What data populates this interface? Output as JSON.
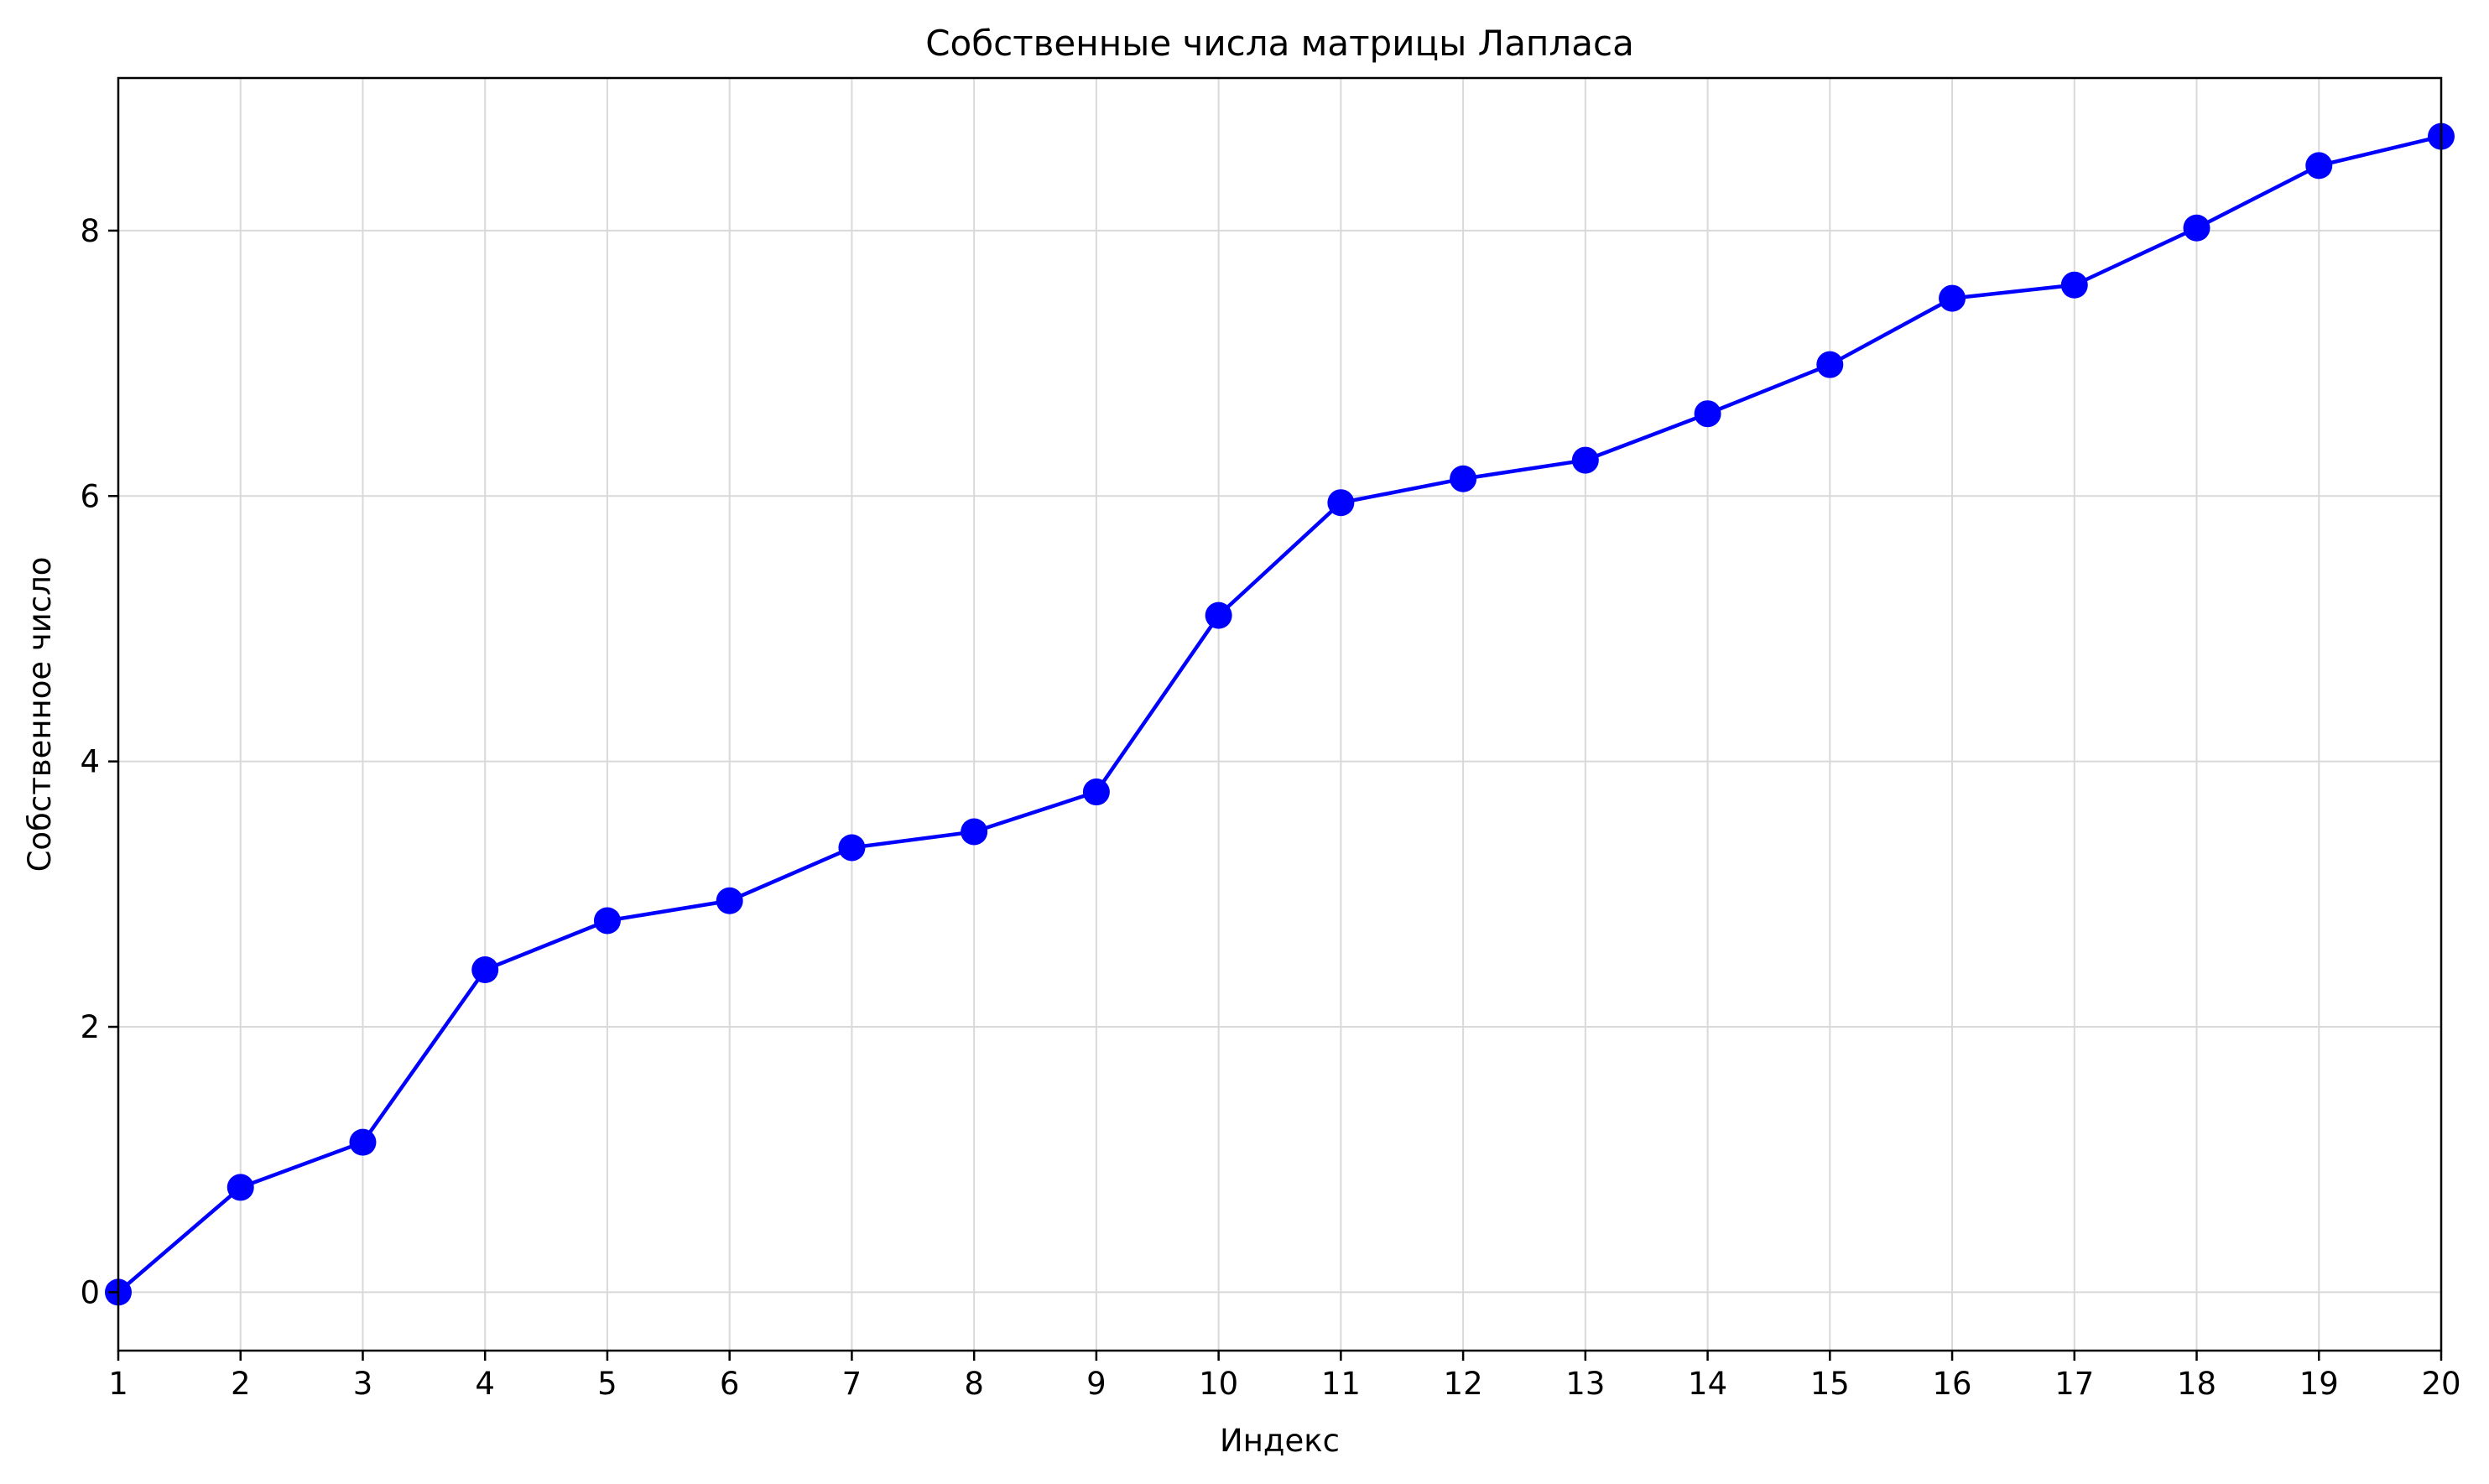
{
  "chart_data": {
    "type": "line",
    "title": "Собственные числа матрицы Лапласа",
    "xlabel": "Индекс",
    "ylabel": "Собственное число",
    "x": [
      1,
      2,
      3,
      4,
      5,
      6,
      7,
      8,
      9,
      10,
      11,
      12,
      13,
      14,
      15,
      16,
      17,
      18,
      19,
      20
    ],
    "series": [
      {
        "values": [
          0.0,
          0.79,
          1.13,
          2.43,
          2.8,
          2.95,
          3.35,
          3.47,
          3.77,
          5.1,
          5.95,
          6.13,
          6.27,
          6.62,
          6.99,
          7.49,
          7.59,
          8.02,
          8.49,
          8.71
        ],
        "color": "#0000ff",
        "marker": "circle"
      }
    ],
    "xlim": [
      1,
      20
    ],
    "ylim": [
      -0.44,
      9.15
    ],
    "xticks": [
      "1",
      "2",
      "3",
      "4",
      "5",
      "6",
      "7",
      "8",
      "9",
      "10",
      "11",
      "12",
      "13",
      "14",
      "15",
      "16",
      "17",
      "18",
      "19",
      "20"
    ],
    "yticks": [
      0,
      2,
      4,
      6,
      8
    ],
    "ytick_labels": [
      "0",
      "2",
      "4",
      "6",
      "8"
    ],
    "grid": true,
    "legend": "none"
  }
}
